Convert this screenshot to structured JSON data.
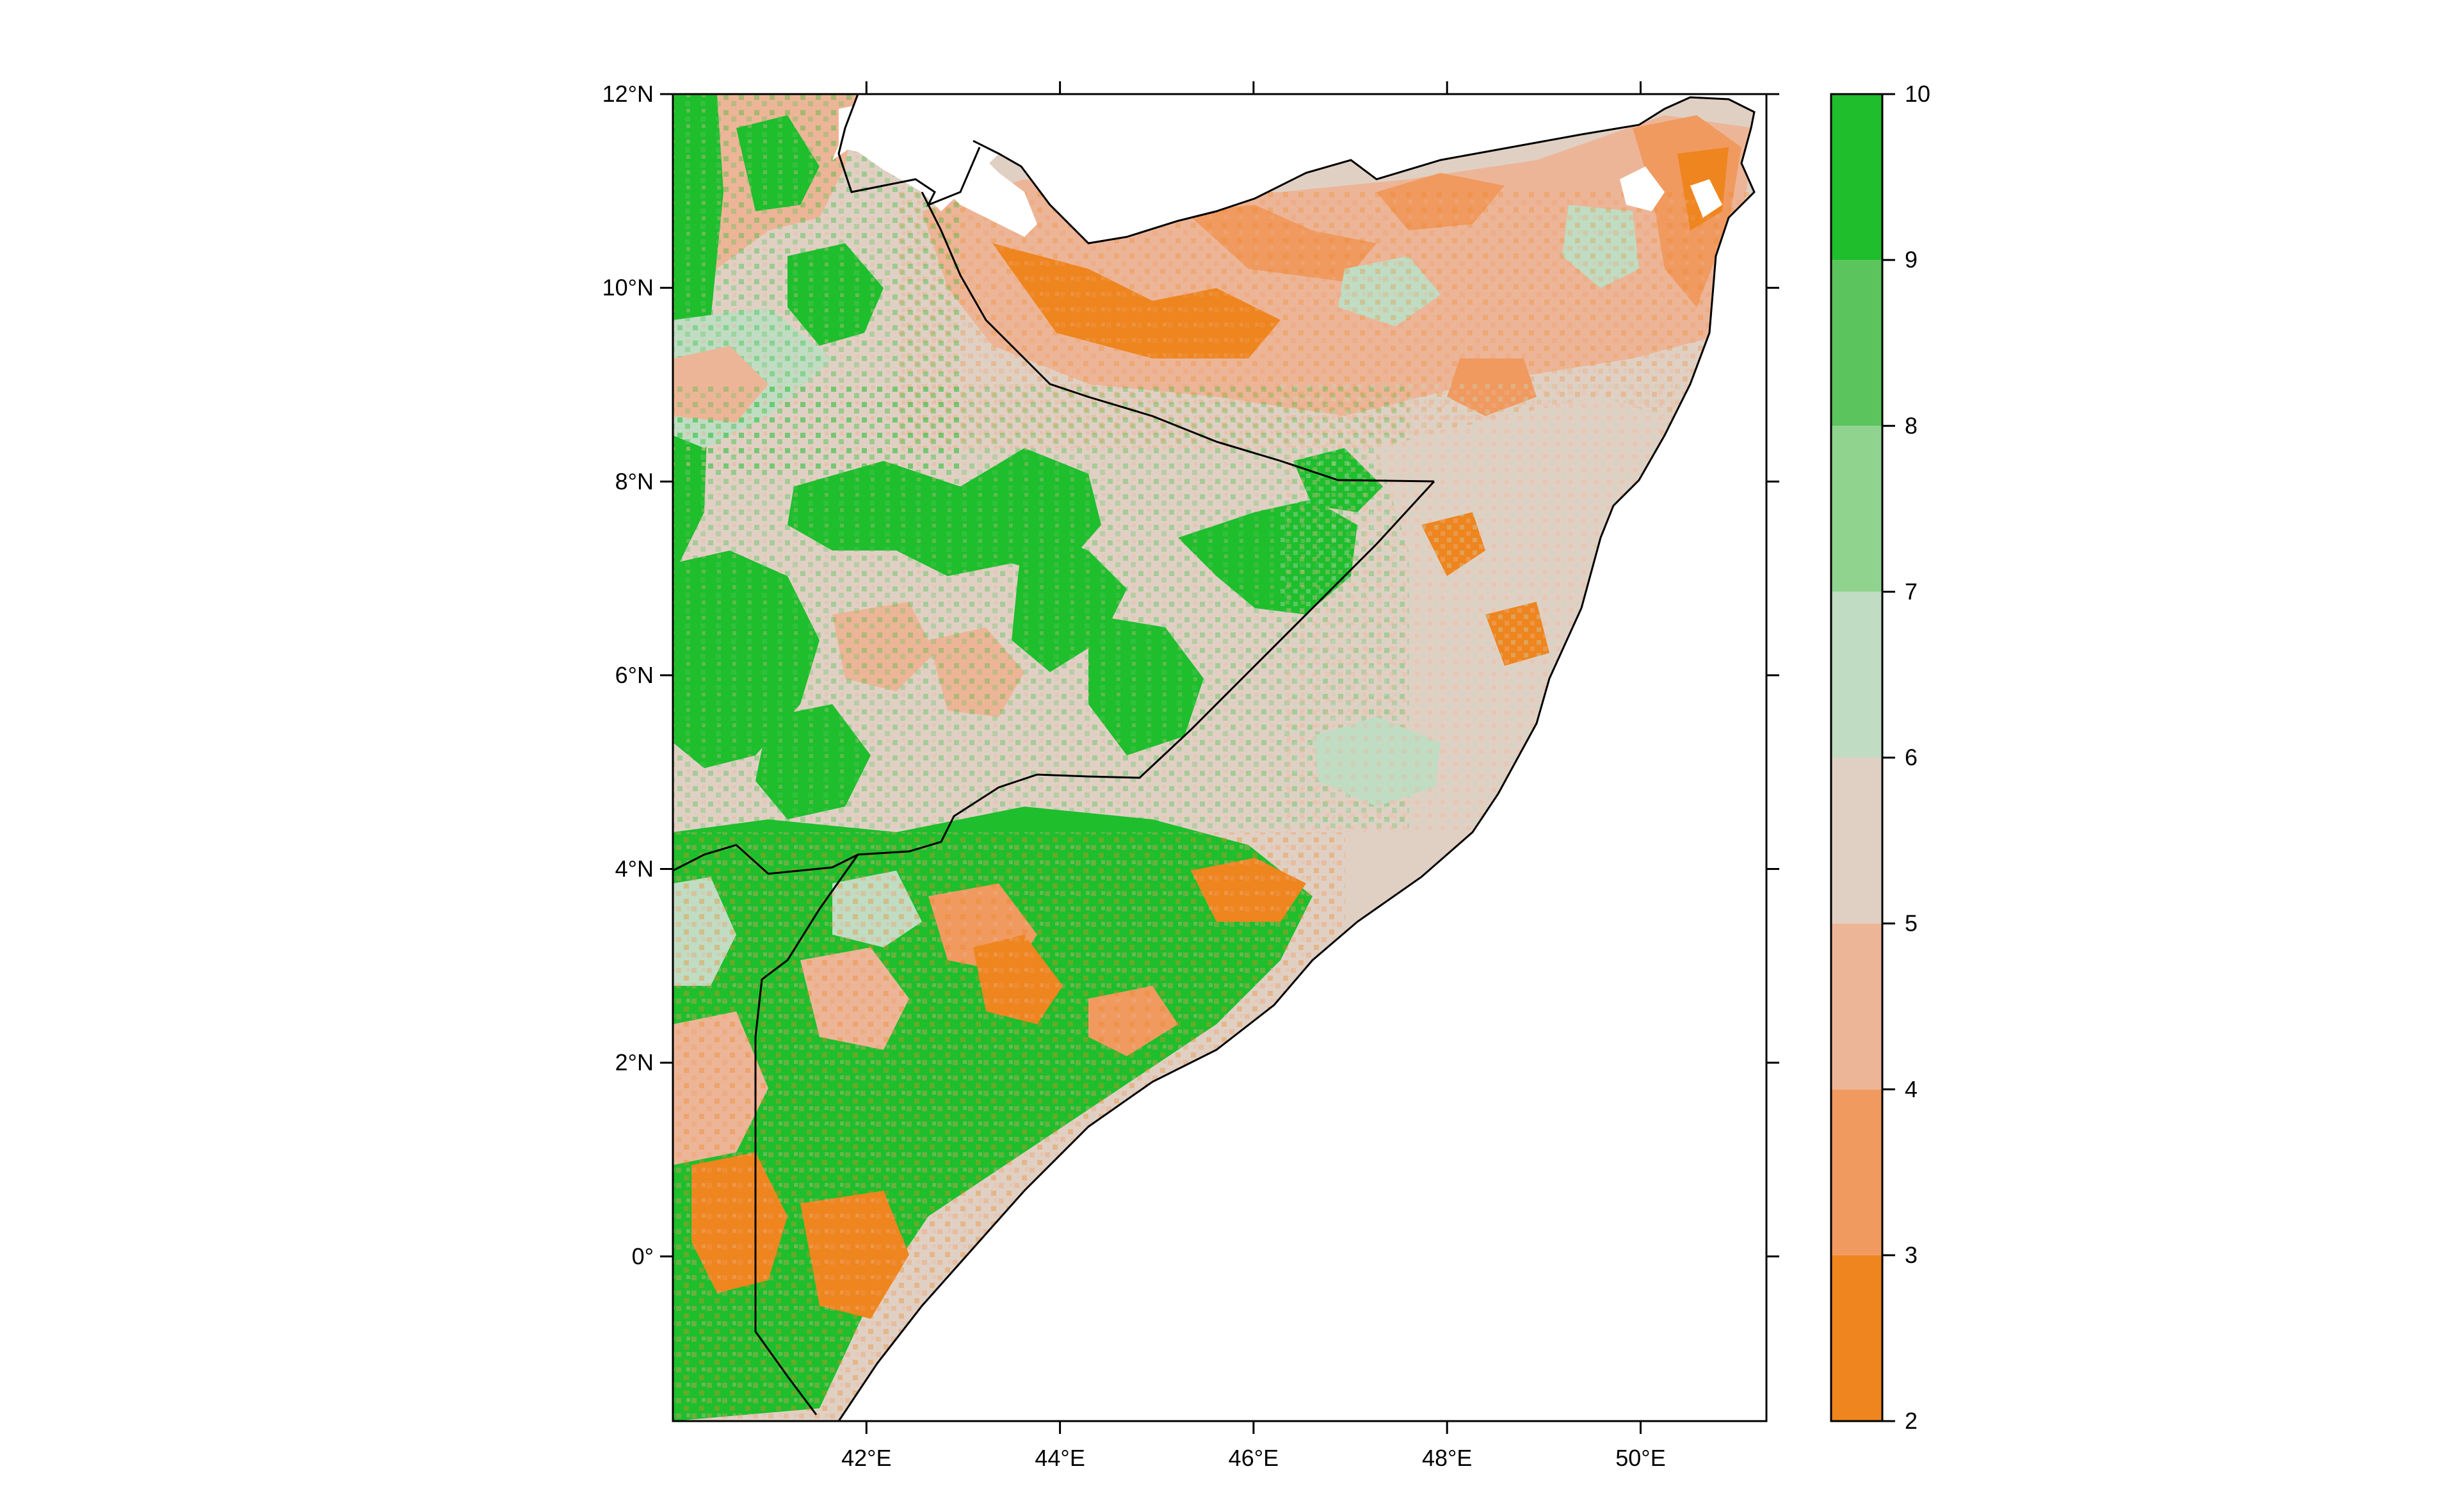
{
  "map": {
    "region": "Somalia and Horn of Africa",
    "lon_range": [
      40.0,
      51.3
    ],
    "lat_range": [
      -1.7,
      12.0
    ],
    "x_ticks": [
      {
        "value": 42,
        "label": "42°E"
      },
      {
        "value": 44,
        "label": "44°E"
      },
      {
        "value": 46,
        "label": "46°E"
      },
      {
        "value": 48,
        "label": "48°E"
      },
      {
        "value": 50,
        "label": "50°E"
      }
    ],
    "y_ticks": [
      {
        "value": 12,
        "label": "12°N"
      },
      {
        "value": 10,
        "label": "10°N"
      },
      {
        "value": 8,
        "label": "8°N"
      },
      {
        "value": 6,
        "label": "6°N"
      },
      {
        "value": 4,
        "label": "4°N"
      },
      {
        "value": 2,
        "label": "2°N"
      },
      {
        "value": 0,
        "label": "0°"
      }
    ]
  },
  "legend": {
    "bins": [
      {
        "from": 2,
        "to": 3,
        "color": "#EE851E"
      },
      {
        "from": 3,
        "to": 4,
        "color": "#F09A60"
      },
      {
        "from": 4,
        "to": 5,
        "color": "#EDB597"
      },
      {
        "from": 5,
        "to": 6,
        "color": "#E0D0C4"
      },
      {
        "from": 6,
        "to": 7,
        "color": "#C0DCC3"
      },
      {
        "from": 7,
        "to": 8,
        "color": "#8FD38F"
      },
      {
        "from": 8,
        "to": 9,
        "color": "#5CC45C"
      },
      {
        "from": 9,
        "to": 10,
        "color": "#1EBE2D"
      }
    ],
    "labels": [
      "2",
      "3",
      "4",
      "5",
      "6",
      "7",
      "8",
      "9",
      "10"
    ]
  }
}
